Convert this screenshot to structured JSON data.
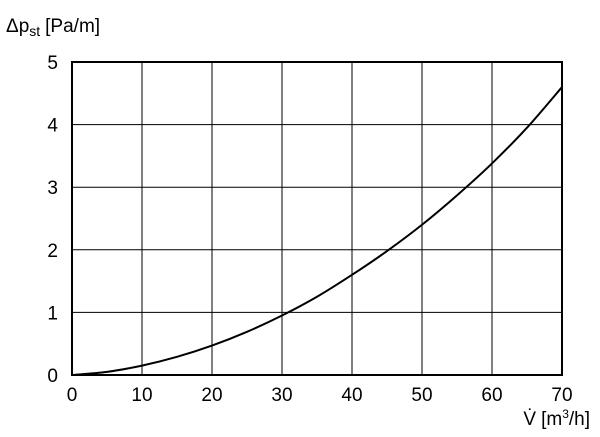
{
  "chart_data": {
    "type": "line",
    "title": "",
    "ylabel": {
      "symbol": "Δp",
      "subscript": "st",
      "unit": "[Pa/m]"
    },
    "xlabel": {
      "symbol": "V̇",
      "unit_prefix": "[m",
      "unit_sup": "3",
      "unit_suffix": "/h]"
    },
    "xlim": [
      0,
      70
    ],
    "ylim": [
      0,
      5
    ],
    "x_ticks": [
      0,
      10,
      20,
      30,
      40,
      50,
      60,
      70
    ],
    "y_ticks": [
      0,
      1,
      2,
      3,
      4,
      5
    ],
    "grid": true,
    "legend": "none",
    "series": [
      {
        "x": [
          0,
          5,
          10,
          15,
          20,
          25,
          30,
          35,
          40,
          45,
          50,
          55,
          60,
          65,
          70
        ],
        "y": [
          0,
          0.05,
          0.15,
          0.29,
          0.47,
          0.69,
          0.95,
          1.25,
          1.6,
          1.98,
          2.4,
          2.87,
          3.38,
          3.95,
          4.6
        ]
      }
    ],
    "colors": {
      "line": "#000000",
      "grid": "#000000",
      "frame": "#000000"
    }
  }
}
